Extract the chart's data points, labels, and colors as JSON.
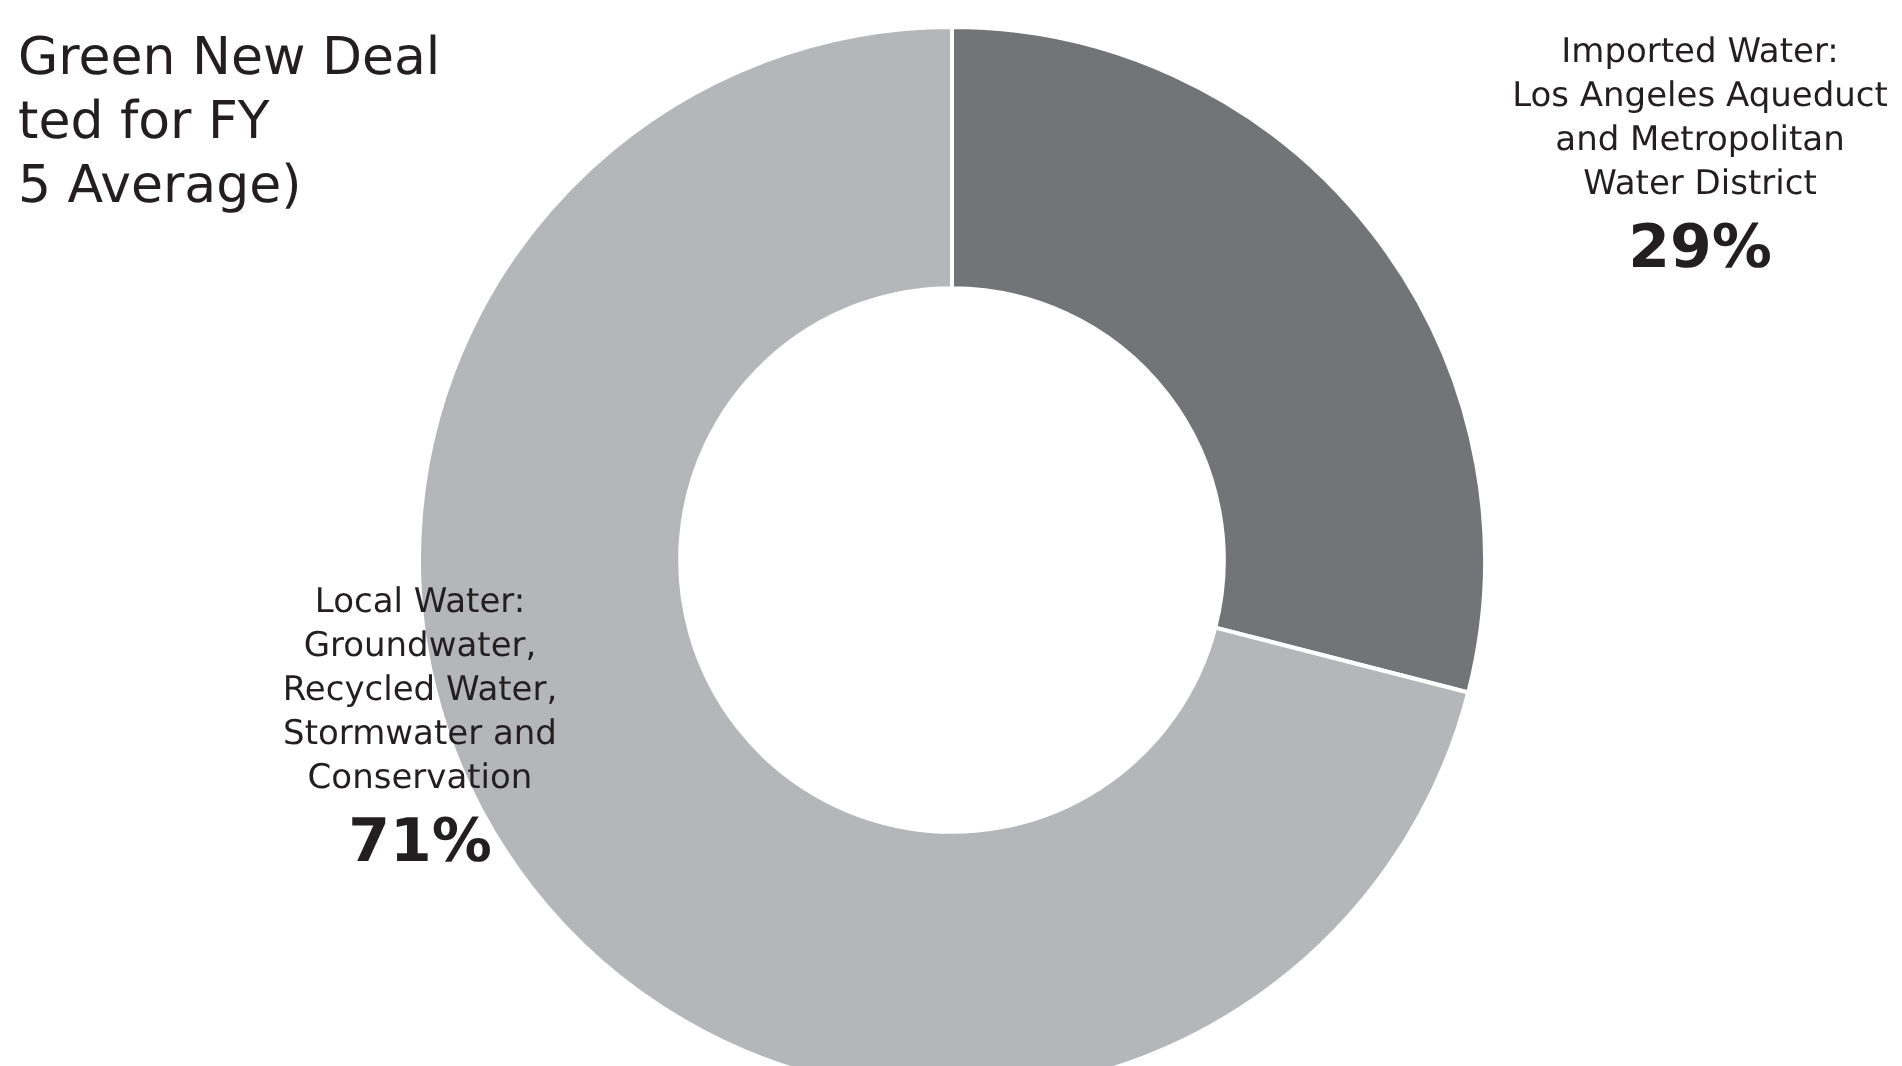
{
  "chart_data": {
    "type": "donut",
    "title": "Green New Deal\nted for FY\n5 Average)",
    "categories": [
      "Imported Water:\nLos Angeles Aqueduct\nand Metropolitan\nWater District",
      "Local Water:\nGroundwater,\nRecycled Water,\nStormwater and\nConservation"
    ],
    "values": [
      29,
      71
    ],
    "value_labels": [
      "29%",
      "71%"
    ],
    "colors": [
      "#737477",
      "#b5b6b9"
    ]
  }
}
